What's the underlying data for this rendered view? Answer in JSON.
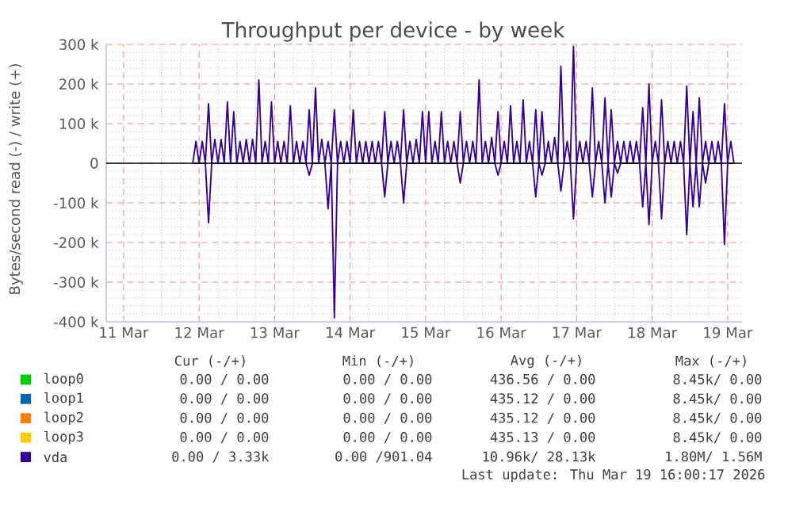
{
  "chart_data": {
    "type": "line",
    "title": "Throughput per device - by week",
    "ylabel": "Bytes/second read (-) / write (+)",
    "xlim": [
      "2026-03-10T18:29",
      "2026-03-19T04:34"
    ],
    "ylim": [
      -400000,
      300000
    ],
    "xticks": [
      {
        "value": "2026-03-11",
        "label": "11 Mar"
      },
      {
        "value": "2026-03-12",
        "label": "12 Mar"
      },
      {
        "value": "2026-03-13",
        "label": "13 Mar"
      },
      {
        "value": "2026-03-14",
        "label": "14 Mar"
      },
      {
        "value": "2026-03-15",
        "label": "15 Mar"
      },
      {
        "value": "2026-03-16",
        "label": "16 Mar"
      },
      {
        "value": "2026-03-17",
        "label": "17 Mar"
      },
      {
        "value": "2026-03-18",
        "label": "18 Mar"
      },
      {
        "value": "2026-03-19",
        "label": "19 Mar"
      }
    ],
    "yticks": [
      {
        "value": -400000,
        "label": "-400 k"
      },
      {
        "value": -300000,
        "label": "-300 k"
      },
      {
        "value": -200000,
        "label": "-200 k"
      },
      {
        "value": -100000,
        "label": "-100 k"
      },
      0,
      {
        "value": 100000,
        "label": "100 k"
      },
      {
        "value": 200000,
        "label": "200 k"
      },
      {
        "value": 300000,
        "label": "300 k"
      }
    ],
    "grid": true,
    "legend": "bottom",
    "marker": "none",
    "ref_lines": [
      {
        "axis": "y",
        "value": 0,
        "color": "#000000"
      }
    ],
    "series": [
      {
        "name": "loop0",
        "color": "#00cc00"
      },
      {
        "name": "loop1",
        "color": "#0066b3"
      },
      {
        "name": "loop2",
        "color": "#ff8000"
      },
      {
        "name": "loop3",
        "color": "#ffcc00"
      },
      {
        "name": "vda",
        "color": "#330099",
        "x": [
          "2026-03-11T22:00",
          "2026-03-11T23:00",
          "2026-03-12T00:00",
          "2026-03-12T01:00",
          "2026-03-12T02:00",
          "2026-03-12T03:00",
          "2026-03-12T04:00",
          "2026-03-12T05:00",
          "2026-03-12T06:00",
          "2026-03-12T07:00",
          "2026-03-12T08:00",
          "2026-03-12T09:00",
          "2026-03-12T10:00",
          "2026-03-12T11:00",
          "2026-03-12T12:00",
          "2026-03-12T13:00",
          "2026-03-12T14:00",
          "2026-03-12T15:00",
          "2026-03-12T16:00",
          "2026-03-12T17:00",
          "2026-03-12T18:00",
          "2026-03-12T19:00",
          "2026-03-12T20:00",
          "2026-03-12T21:00",
          "2026-03-12T22:00",
          "2026-03-12T23:00",
          "2026-03-13T00:00",
          "2026-03-13T01:00",
          "2026-03-13T02:00",
          "2026-03-13T03:00",
          "2026-03-13T04:00",
          "2026-03-13T05:00",
          "2026-03-13T06:00",
          "2026-03-13T07:00",
          "2026-03-13T08:00",
          "2026-03-13T09:00",
          "2026-03-13T10:00",
          "2026-03-13T11:00",
          "2026-03-13T12:00",
          "2026-03-13T13:00",
          "2026-03-13T14:00",
          "2026-03-13T15:00",
          "2026-03-13T16:00",
          "2026-03-13T17:00",
          "2026-03-13T18:00",
          "2026-03-13T19:00",
          "2026-03-13T20:00",
          "2026-03-13T21:00",
          "2026-03-13T22:00",
          "2026-03-13T23:00",
          "2026-03-14T00:00",
          "2026-03-14T01:00",
          "2026-03-14T02:00",
          "2026-03-14T03:00",
          "2026-03-14T04:00",
          "2026-03-14T05:00",
          "2026-03-14T06:00",
          "2026-03-14T07:00",
          "2026-03-14T08:00",
          "2026-03-14T09:00",
          "2026-03-14T10:00",
          "2026-03-14T11:00",
          "2026-03-14T12:00",
          "2026-03-14T13:00",
          "2026-03-14T14:00",
          "2026-03-14T15:00",
          "2026-03-14T16:00",
          "2026-03-14T17:00",
          "2026-03-14T18:00",
          "2026-03-14T19:00",
          "2026-03-14T20:00",
          "2026-03-14T21:00",
          "2026-03-14T22:00",
          "2026-03-14T23:00",
          "2026-03-15T00:00",
          "2026-03-15T01:00",
          "2026-03-15T02:00",
          "2026-03-15T03:00",
          "2026-03-15T04:00",
          "2026-03-15T05:00",
          "2026-03-15T06:00",
          "2026-03-15T07:00",
          "2026-03-15T08:00",
          "2026-03-15T09:00",
          "2026-03-15T10:00",
          "2026-03-15T11:00",
          "2026-03-15T12:00",
          "2026-03-15T13:00",
          "2026-03-15T14:00",
          "2026-03-15T15:00",
          "2026-03-15T16:00",
          "2026-03-15T17:00",
          "2026-03-15T18:00",
          "2026-03-15T19:00",
          "2026-03-15T20:00",
          "2026-03-15T21:00",
          "2026-03-15T22:00",
          "2026-03-15T23:00",
          "2026-03-16T00:00",
          "2026-03-16T01:00",
          "2026-03-16T02:00",
          "2026-03-16T03:00",
          "2026-03-16T04:00",
          "2026-03-16T05:00",
          "2026-03-16T06:00",
          "2026-03-16T07:00",
          "2026-03-16T08:00",
          "2026-03-16T09:00",
          "2026-03-16T10:00",
          "2026-03-16T11:00",
          "2026-03-16T12:00",
          "2026-03-16T13:00",
          "2026-03-16T14:00",
          "2026-03-16T15:00",
          "2026-03-16T16:00",
          "2026-03-16T17:00",
          "2026-03-16T18:00",
          "2026-03-16T19:00",
          "2026-03-16T20:00",
          "2026-03-16T21:00",
          "2026-03-16T22:00",
          "2026-03-16T23:00",
          "2026-03-17T00:00",
          "2026-03-17T01:00",
          "2026-03-17T02:00",
          "2026-03-17T03:00",
          "2026-03-17T04:00",
          "2026-03-17T05:00",
          "2026-03-17T06:00",
          "2026-03-17T07:00",
          "2026-03-17T08:00",
          "2026-03-17T09:00",
          "2026-03-17T10:00",
          "2026-03-17T11:00",
          "2026-03-17T12:00",
          "2026-03-17T13:00",
          "2026-03-17T14:00",
          "2026-03-17T15:00",
          "2026-03-17T16:00",
          "2026-03-17T17:00",
          "2026-03-17T18:00",
          "2026-03-17T19:00",
          "2026-03-17T20:00",
          "2026-03-17T21:00",
          "2026-03-17T22:00",
          "2026-03-17T23:00",
          "2026-03-18T00:00",
          "2026-03-18T01:00",
          "2026-03-18T02:00",
          "2026-03-18T03:00",
          "2026-03-18T04:00",
          "2026-03-18T05:00",
          "2026-03-18T06:00",
          "2026-03-18T07:00",
          "2026-03-18T08:00",
          "2026-03-18T09:00",
          "2026-03-18T10:00",
          "2026-03-18T11:00",
          "2026-03-18T12:00",
          "2026-03-18T13:00",
          "2026-03-18T14:00",
          "2026-03-18T15:00",
          "2026-03-18T16:00",
          "2026-03-18T17:00",
          "2026-03-18T18:00",
          "2026-03-18T19:00",
          "2026-03-18T20:00",
          "2026-03-18T21:00",
          "2026-03-18T22:00",
          "2026-03-18T23:00",
          "2026-03-19T00:00",
          "2026-03-19T01:00",
          "2026-03-19T02:00"
        ],
        "values": [
          0,
          55000,
          0,
          55000,
          0,
          150000,
          0,
          60000,
          0,
          60000,
          0,
          155000,
          0,
          130000,
          0,
          55000,
          0,
          60000,
          0,
          60000,
          0,
          210000,
          0,
          55000,
          0,
          155000,
          0,
          55000,
          0,
          55000,
          0,
          145000,
          0,
          55000,
          0,
          55000,
          0,
          135000,
          0,
          190000,
          0,
          60000,
          0,
          55000,
          0,
          135000,
          0,
          55000,
          0,
          55000,
          0,
          135000,
          0,
          55000,
          0,
          55000,
          0,
          55000,
          0,
          55000,
          0,
          130000,
          0,
          55000,
          0,
          55000,
          0,
          135000,
          0,
          55000,
          0,
          60000,
          0,
          130000,
          0,
          130000,
          0,
          55000,
          0,
          130000,
          0,
          55000,
          0,
          55000,
          0,
          130000,
          0,
          55000,
          0,
          55000,
          0,
          210000,
          0,
          55000,
          0,
          65000,
          0,
          130000,
          0,
          55000,
          0,
          145000,
          0,
          55000,
          0,
          160000,
          0,
          55000,
          0,
          135000,
          0,
          130000,
          0,
          55000,
          0,
          65000,
          0,
          245000,
          0,
          55000,
          0,
          295000,
          0,
          55000,
          0,
          55000,
          0,
          190000,
          0,
          55000,
          0,
          165000,
          0,
          135000,
          0,
          55000,
          0,
          55000,
          0,
          55000,
          0,
          55000,
          0,
          140000,
          0,
          200000,
          0,
          55000,
          0,
          160000,
          0,
          55000,
          0,
          55000,
          0,
          55000,
          0,
          195000,
          0,
          130000,
          0,
          165000,
          0,
          55000,
          0,
          55000,
          0,
          55000,
          0,
          150000,
          0,
          55000,
          0
        ]
      },
      {
        "color": "#330099",
        "x": [
          "2026-03-11T22:00",
          "2026-03-12T02:00",
          "2026-03-12T03:00",
          "2026-03-12T04:00",
          "2026-03-13T10:00",
          "2026-03-13T11:00",
          "2026-03-13T12:00",
          "2026-03-13T16:00",
          "2026-03-13T17:00",
          "2026-03-13T18:00",
          "2026-03-13T19:00",
          "2026-03-13T20:00",
          "2026-03-14T10:00",
          "2026-03-14T11:00",
          "2026-03-14T12:00",
          "2026-03-14T16:00",
          "2026-03-14T17:00",
          "2026-03-14T18:00",
          "2026-03-15T10:00",
          "2026-03-15T11:00",
          "2026-03-15T12:00",
          "2026-03-15T22:00",
          "2026-03-15T23:00",
          "2026-03-16T00:00",
          "2026-03-16T10:00",
          "2026-03-16T11:00",
          "2026-03-16T12:00",
          "2026-03-16T13:00",
          "2026-03-16T14:00",
          "2026-03-16T18:00",
          "2026-03-16T19:00",
          "2026-03-16T20:00",
          "2026-03-16T22:00",
          "2026-03-16T23:00",
          "2026-03-17T00:00",
          "2026-03-17T04:00",
          "2026-03-17T05:00",
          "2026-03-17T06:00",
          "2026-03-17T08:00",
          "2026-03-17T09:00",
          "2026-03-17T10:00",
          "2026-03-17T11:00",
          "2026-03-17T12:00",
          "2026-03-17T13:00",
          "2026-03-17T14:00",
          "2026-03-17T20:00",
          "2026-03-17T21:00",
          "2026-03-17T22:00",
          "2026-03-17T23:00",
          "2026-03-18T00:00",
          "2026-03-18T02:00",
          "2026-03-18T03:00",
          "2026-03-18T04:00",
          "2026-03-18T10:00",
          "2026-03-18T11:00",
          "2026-03-18T12:00",
          "2026-03-18T13:00",
          "2026-03-18T14:00",
          "2026-03-18T15:00",
          "2026-03-18T16:00",
          "2026-03-18T17:00",
          "2026-03-18T18:00",
          "2026-03-18T22:00",
          "2026-03-18T23:00",
          "2026-03-19T00:00",
          "2026-03-19T02:00"
        ],
        "values": [
          0,
          0,
          -150000,
          0,
          0,
          -30000,
          0,
          0,
          -115000,
          0,
          -390000,
          0,
          0,
          -85000,
          0,
          0,
          -100000,
          0,
          0,
          -50000,
          0,
          0,
          -30000,
          0,
          0,
          -85000,
          0,
          -30000,
          0,
          0,
          -70000,
          0,
          0,
          -140000,
          0,
          0,
          -85000,
          0,
          0,
          -100000,
          0,
          -85000,
          0,
          -25000,
          0,
          0,
          -110000,
          0,
          -155000,
          0,
          0,
          -140000,
          0,
          0,
          -180000,
          0,
          -110000,
          0,
          -110000,
          0,
          -50000,
          0,
          0,
          -205000,
          0,
          0
        ]
      }
    ],
    "annotations": [
      "Cur (-/+)",
      "Min (-/+)",
      "Avg (-/+)",
      "Max (-/+)",
      "0.00 / 0.00",
      "0.00 / 0.00",
      "436.56 / 0.00",
      "8.45k/ 0.00",
      "0.00 / 0.00",
      "0.00 / 0.00",
      "435.12 / 0.00",
      "8.45k/ 0.00",
      "0.00 / 0.00",
      "0.00 / 0.00",
      "435.12 / 0.00",
      "8.45k/ 0.00",
      "0.00 / 0.00",
      "0.00 / 0.00",
      "435.13 / 0.00",
      "8.45k/ 0.00",
      "0.00 / 3.33k",
      "0.00 /901.04",
      "10.96k/ 28.13k",
      "1.80M/ 1.56M",
      "Last update: Thu Mar 19 16:00:17 2026"
    ]
  }
}
